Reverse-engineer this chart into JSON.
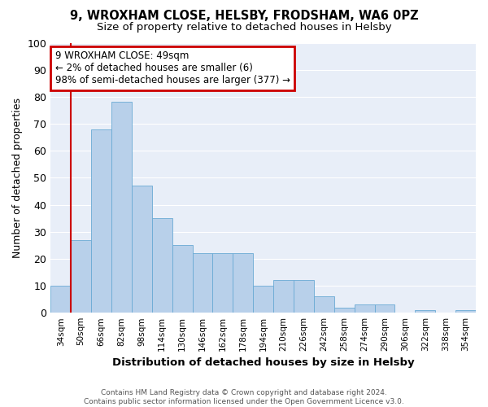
{
  "title1": "9, WROXHAM CLOSE, HELSBY, FRODSHAM, WA6 0PZ",
  "title2": "Size of property relative to detached houses in Helsby",
  "xlabel": "Distribution of detached houses by size in Helsby",
  "ylabel": "Number of detached properties",
  "categories": [
    "34sqm",
    "50sqm",
    "66sqm",
    "82sqm",
    "98sqm",
    "114sqm",
    "130sqm",
    "146sqm",
    "162sqm",
    "178sqm",
    "194sqm",
    "210sqm",
    "226sqm",
    "242sqm",
    "258sqm",
    "274sqm",
    "290sqm",
    "306sqm",
    "322sqm",
    "338sqm",
    "354sqm"
  ],
  "values": [
    10,
    27,
    68,
    78,
    47,
    35,
    25,
    22,
    22,
    22,
    10,
    12,
    12,
    6,
    2,
    3,
    3,
    0,
    1,
    0,
    1
  ],
  "bar_color": "#b8d0ea",
  "bar_edge_color": "#6aaad4",
  "highlight_bar_index": 1,
  "highlight_color": "#cc0000",
  "annotation_line1": "9 WROXHAM CLOSE: 49sqm",
  "annotation_line2": "← 2% of detached houses are smaller (6)",
  "annotation_line3": "98% of semi-detached houses are larger (377) →",
  "annotation_box_color": "#cc0000",
  "ylim": [
    0,
    100
  ],
  "yticks": [
    0,
    10,
    20,
    30,
    40,
    50,
    60,
    70,
    80,
    90,
    100
  ],
  "background_color": "#e8eef8",
  "grid_color": "#ffffff",
  "fig_bg_color": "#ffffff",
  "footer_text": "Contains HM Land Registry data © Crown copyright and database right 2024.\nContains public sector information licensed under the Open Government Licence v3.0."
}
